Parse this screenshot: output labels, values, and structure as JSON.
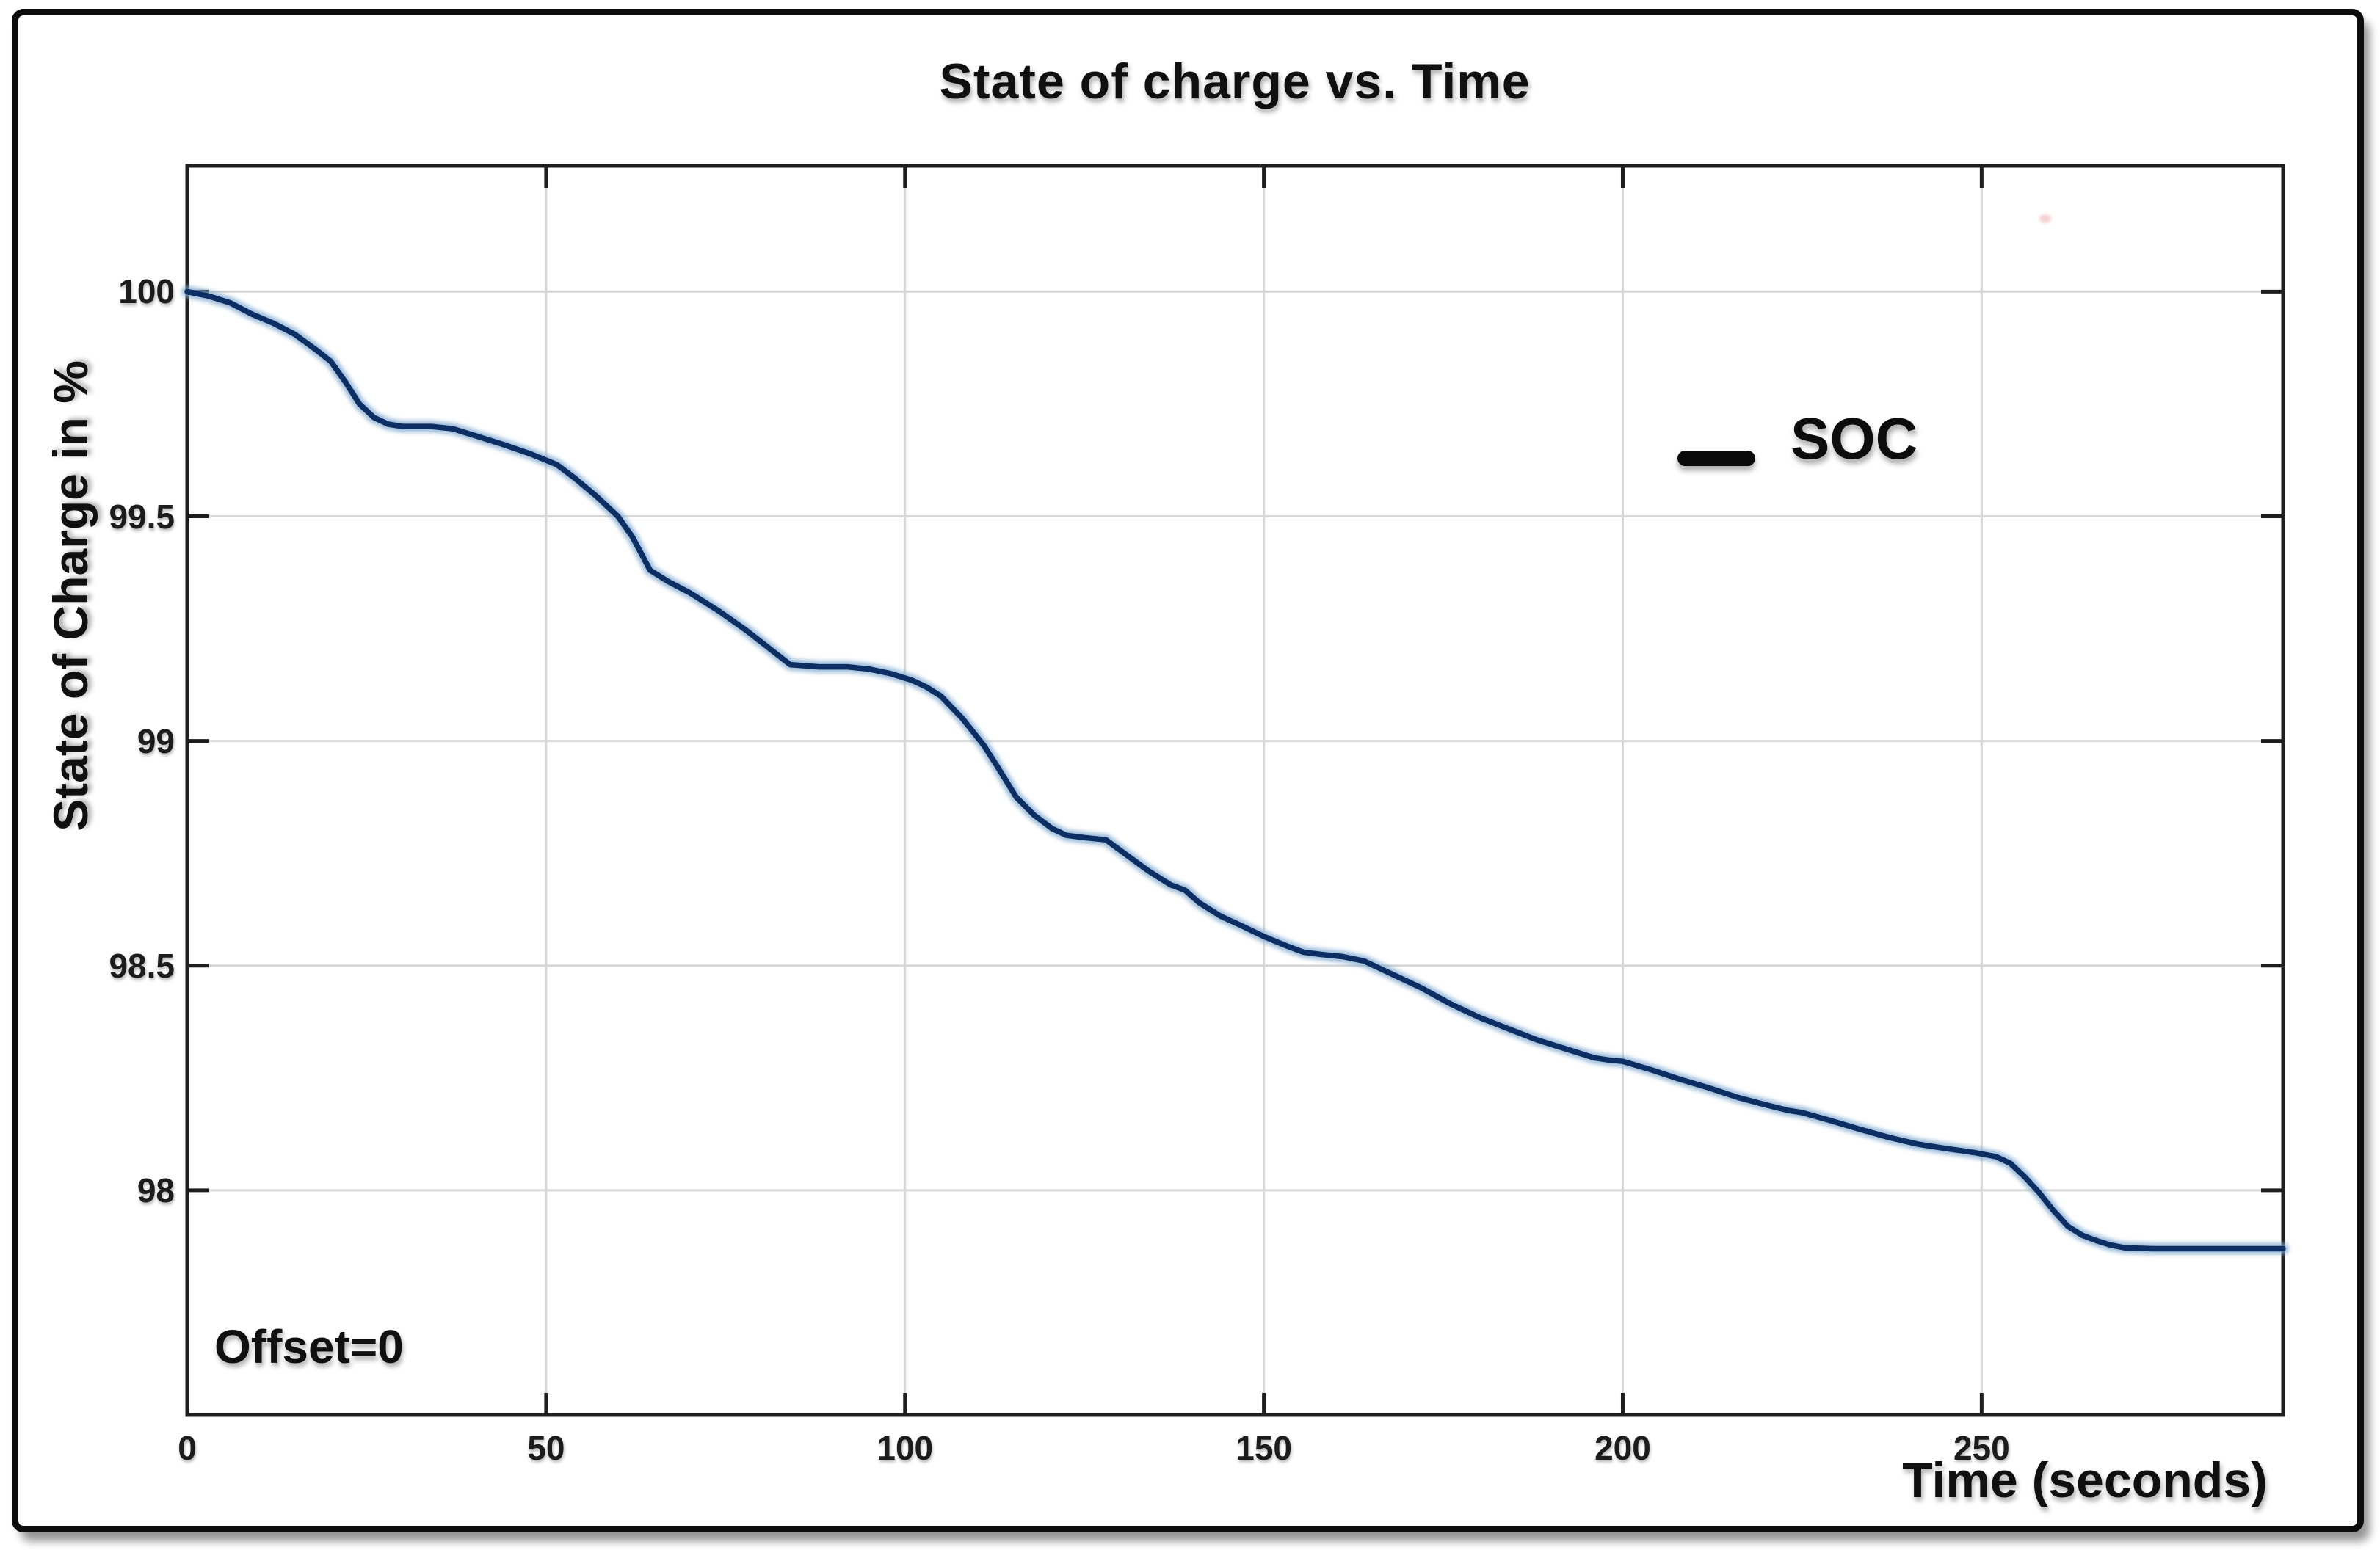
{
  "title": "State of charge vs. Time",
  "legend": {
    "label": "SOC"
  },
  "annotations": {
    "offset_label": "Offset=0"
  },
  "axes": {
    "x": {
      "label": "Time (seconds)",
      "tick_labels": [
        "0",
        "50",
        "100",
        "150",
        "200",
        "250"
      ],
      "tick_values": [
        0,
        50,
        100,
        150,
        200,
        250
      ]
    },
    "y": {
      "label": "State of Charge in %",
      "tick_labels": [
        "100",
        "99.5",
        "99",
        "98.5",
        "98"
      ],
      "tick_values": [
        100,
        99.5,
        99,
        98.5,
        98
      ]
    }
  },
  "colors": {
    "line_core": "#0c2e62",
    "line_halo": "#7fa8cf",
    "grid": "#d7d7d7",
    "axis_border": "#1e1e1e",
    "text": "#101010"
  },
  "chart_data": {
    "type": "line",
    "title": "State of charge vs. Time",
    "xlabel": "Time (seconds)",
    "ylabel": "State of Charge in %",
    "xlim": [
      0,
      292
    ],
    "ylim": [
      97.5,
      100.28
    ],
    "grid": true,
    "legend_position": "upper-right-inside",
    "annotation": "Offset=0",
    "series": [
      {
        "name": "SOC",
        "color": "#0c2e62",
        "points": [
          [
            0,
            100.0
          ],
          [
            3,
            99.99
          ],
          [
            6,
            99.975
          ],
          [
            9,
            99.95
          ],
          [
            12,
            99.93
          ],
          [
            15,
            99.905
          ],
          [
            18,
            99.87
          ],
          [
            20,
            99.845
          ],
          [
            22,
            99.8
          ],
          [
            24,
            99.75
          ],
          [
            26,
            99.72
          ],
          [
            28,
            99.705
          ],
          [
            30,
            99.7
          ],
          [
            34,
            99.7
          ],
          [
            37,
            99.695
          ],
          [
            40,
            99.68
          ],
          [
            44,
            99.66
          ],
          [
            48,
            99.638
          ],
          [
            51.5,
            99.615
          ],
          [
            54,
            99.585
          ],
          [
            57,
            99.545
          ],
          [
            60,
            99.5
          ],
          [
            62,
            99.455
          ],
          [
            64.5,
            99.38
          ],
          [
            67,
            99.355
          ],
          [
            70,
            99.33
          ],
          [
            74,
            99.29
          ],
          [
            78,
            99.245
          ],
          [
            82,
            99.195
          ],
          [
            84,
            99.17
          ],
          [
            88,
            99.165
          ],
          [
            92,
            99.165
          ],
          [
            95,
            99.16
          ],
          [
            98,
            99.15
          ],
          [
            101,
            99.135
          ],
          [
            103,
            99.12
          ],
          [
            105,
            99.1
          ],
          [
            108,
            99.05
          ],
          [
            111,
            98.99
          ],
          [
            113,
            98.94
          ],
          [
            115.5,
            98.875
          ],
          [
            118,
            98.835
          ],
          [
            120.5,
            98.805
          ],
          [
            122.5,
            98.79
          ],
          [
            125,
            98.785
          ],
          [
            128,
            98.78
          ],
          [
            131,
            98.745
          ],
          [
            134,
            98.71
          ],
          [
            137,
            98.68
          ],
          [
            139,
            98.668
          ],
          [
            141,
            98.64
          ],
          [
            144,
            98.61
          ],
          [
            147,
            98.588
          ],
          [
            150,
            98.565
          ],
          [
            153,
            98.545
          ],
          [
            155.5,
            98.53
          ],
          [
            158,
            98.525
          ],
          [
            161,
            98.52
          ],
          [
            164,
            98.51
          ],
          [
            168,
            98.48
          ],
          [
            172,
            98.45
          ],
          [
            176,
            98.415
          ],
          [
            180,
            98.385
          ],
          [
            184,
            98.36
          ],
          [
            188,
            98.335
          ],
          [
            192,
            98.315
          ],
          [
            196,
            98.295
          ],
          [
            198,
            98.29
          ],
          [
            200,
            98.287
          ],
          [
            204,
            98.268
          ],
          [
            208,
            98.247
          ],
          [
            212,
            98.228
          ],
          [
            216,
            98.207
          ],
          [
            220,
            98.19
          ],
          [
            223,
            98.178
          ],
          [
            225,
            98.173
          ],
          [
            229,
            98.155
          ],
          [
            233,
            98.136
          ],
          [
            237,
            98.118
          ],
          [
            241,
            98.103
          ],
          [
            245,
            98.093
          ],
          [
            249,
            98.084
          ],
          [
            252,
            98.075
          ],
          [
            254,
            98.06
          ],
          [
            256,
            98.03
          ],
          [
            258,
            97.995
          ],
          [
            260,
            97.955
          ],
          [
            262,
            97.92
          ],
          [
            264,
            97.9
          ],
          [
            266,
            97.888
          ],
          [
            268,
            97.878
          ],
          [
            270,
            97.872
          ],
          [
            274,
            97.87
          ],
          [
            280,
            97.87
          ],
          [
            286,
            97.87
          ],
          [
            292,
            97.87
          ]
        ]
      }
    ]
  }
}
